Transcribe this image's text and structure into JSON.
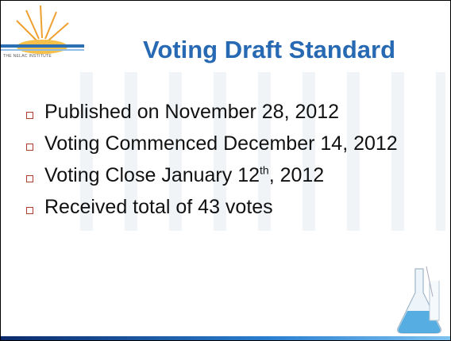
{
  "logo": {
    "text": "THE NELAC INSTITUTE"
  },
  "title": "Voting Draft Standard",
  "bullets": [
    "Published on November 28, 2012",
    "Voting Commenced December 14, 2012",
    {
      "text": "Voting Close January 12",
      "sup": "th",
      "rest": ", 2012"
    },
    "Received total of 43 votes"
  ]
}
